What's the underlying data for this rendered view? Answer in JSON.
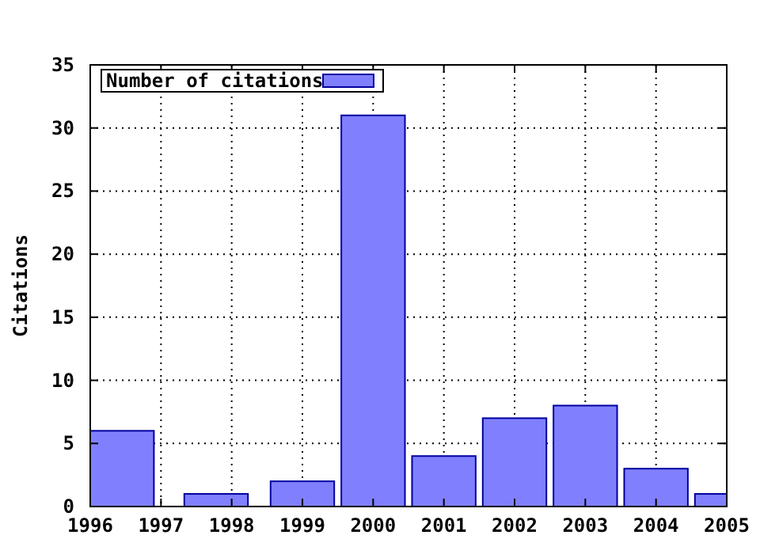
{
  "chart_data": {
    "type": "bar",
    "ylabel": "Citations",
    "x": [
      1996.45,
      1997.78,
      1999,
      2000,
      2001,
      2002,
      2003,
      2004,
      2005
    ],
    "series": [
      {
        "name": "Number of citations",
        "color": "#8080ff",
        "values": [
          6,
          1,
          2,
          31,
          4,
          7,
          8,
          3,
          1
        ]
      }
    ],
    "xlim": [
      1996,
      2005
    ],
    "xticks": [
      1996,
      1997,
      1998,
      1999,
      2000,
      2001,
      2002,
      2003,
      2004,
      2005
    ],
    "ylim": [
      0,
      35
    ],
    "yticks": [
      0,
      5,
      10,
      15,
      20,
      25,
      30,
      35
    ],
    "grid": true,
    "legend": "top left"
  }
}
